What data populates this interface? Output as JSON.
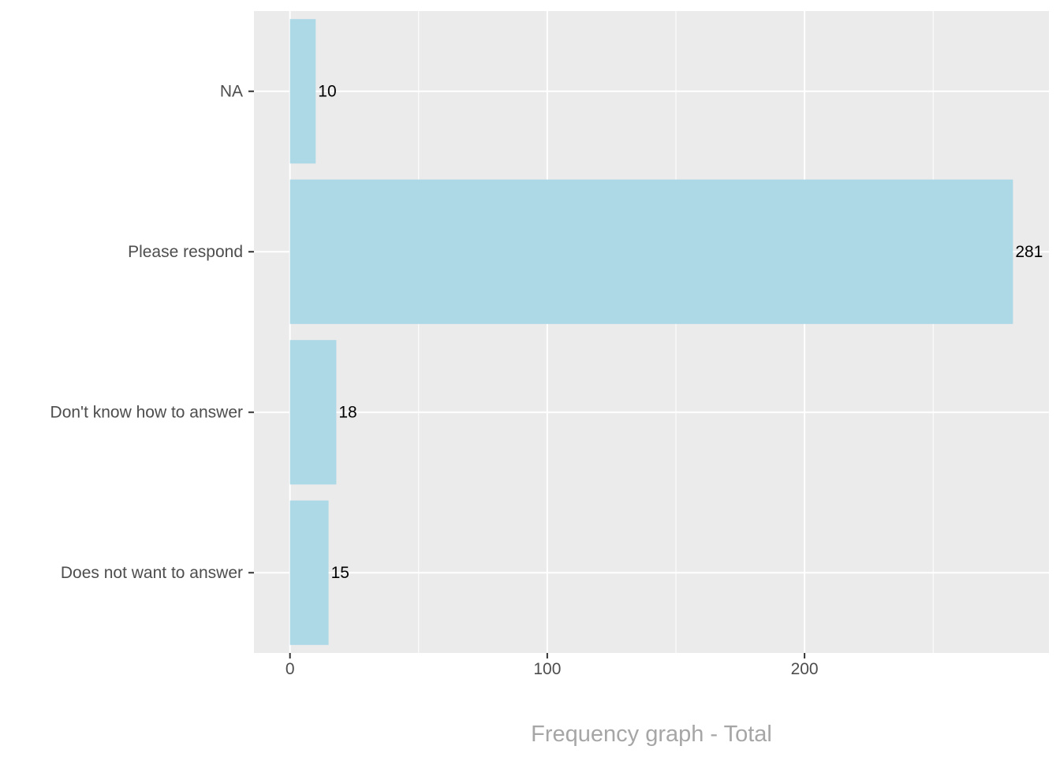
{
  "chart_data": {
    "type": "bar",
    "orientation": "horizontal",
    "categories": [
      "NA",
      "Please respond",
      "Don't know how to answer",
      "Does not want to answer"
    ],
    "values": [
      10,
      281,
      18,
      15
    ],
    "data_labels": [
      "10",
      "281",
      "18",
      "15"
    ],
    "xlabel": "Frequency graph - Total",
    "ylabel": "",
    "xlim": [
      -14,
      295
    ],
    "x_ticks": [
      0,
      100,
      200
    ],
    "x_tick_labels": [
      "0",
      "100",
      "200"
    ],
    "x_minor_ticks": [
      50,
      150,
      250
    ],
    "grid": true,
    "legend": "none",
    "colors": {
      "bar": "#add8e6",
      "panel": "#ebebeb",
      "grid": "#ffffff",
      "axis_text": "#4d4d4d",
      "axis_title": "#a6a6a6",
      "label": "#000000"
    }
  }
}
